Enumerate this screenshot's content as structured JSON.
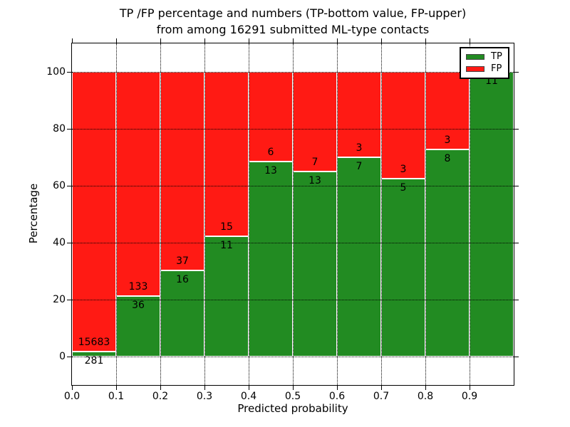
{
  "title": {
    "line1": "TP /FP percentage and numbers (TP-bottom value, FP-upper)",
    "line2": "from among 16291 submitted ML-type contacts"
  },
  "axes": {
    "xlabel": "Predicted probability",
    "ylabel": "Percentage"
  },
  "legend": {
    "position": "upper right",
    "entries": [
      {
        "label": "TP",
        "color": "#228b22"
      },
      {
        "label": "FP",
        "color": "#ff1a14"
      }
    ]
  },
  "chart_data": {
    "type": "bar",
    "stacked": true,
    "normalization": "each bin scaled to 100%; annotations show raw counts (TP below boundary, FP above)",
    "title": "TP /FP percentage and numbers (TP-bottom value, FP-upper) from among 16291 submitted ML-type contacts",
    "xlabel": "Predicted probability",
    "ylabel": "Percentage",
    "xlim": [
      0.0,
      1.0
    ],
    "ylim": [
      -10,
      110
    ],
    "xticks": [
      "0.0",
      "0.1",
      "0.2",
      "0.3",
      "0.4",
      "0.5",
      "0.6",
      "0.7",
      "0.8",
      "0.9"
    ],
    "yticks": [
      0,
      20,
      40,
      60,
      80,
      100
    ],
    "bin_width": 0.1,
    "total_contacts": 16291,
    "categories": [
      "0.0-0.1",
      "0.1-0.2",
      "0.2-0.3",
      "0.3-0.4",
      "0.4-0.5",
      "0.5-0.6",
      "0.6-0.7",
      "0.7-0.8",
      "0.8-0.9",
      "0.9-1.0"
    ],
    "series": [
      {
        "name": "TP",
        "color": "#228b22",
        "counts": [
          281,
          36,
          16,
          11,
          13,
          13,
          7,
          5,
          8,
          11
        ]
      },
      {
        "name": "FP",
        "color": "#ff1a14",
        "counts": [
          15683,
          133,
          37,
          15,
          6,
          7,
          3,
          3,
          3,
          0
        ]
      }
    ],
    "tp_percent_per_bin": [
      1.76,
      21.3,
      30.19,
      42.31,
      68.42,
      65.0,
      70.0,
      62.5,
      72.73,
      100.0
    ],
    "grid": "dotted",
    "legend_position": "upper right"
  }
}
